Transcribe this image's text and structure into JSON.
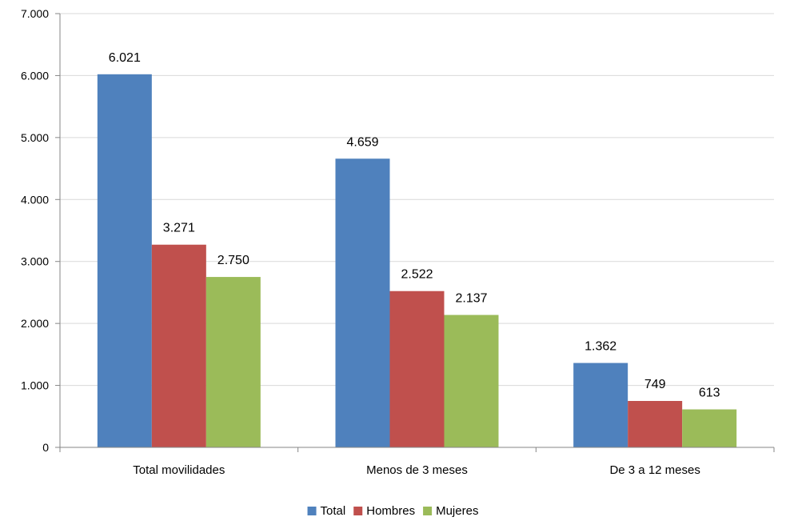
{
  "chart_data": {
    "type": "bar",
    "categories": [
      "Total movilidades",
      "Menos de 3 meses",
      "De 3 a 12 meses"
    ],
    "series": [
      {
        "name": "Total",
        "values": [
          6021,
          4659,
          1362
        ],
        "labels": [
          "6.021",
          "4.659",
          "1.362"
        ],
        "color": "#4F81BD"
      },
      {
        "name": "Hombres",
        "values": [
          3271,
          2522,
          749
        ],
        "labels": [
          "3.271",
          "2.522",
          "749"
        ],
        "color": "#C0504D"
      },
      {
        "name": "Mujeres",
        "values": [
          2750,
          2137,
          613
        ],
        "labels": [
          "2.750",
          "2.137",
          "613"
        ],
        "color": "#9BBB59"
      }
    ],
    "yticks": [
      {
        "value": 0,
        "label": "0"
      },
      {
        "value": 1000,
        "label": "1.000"
      },
      {
        "value": 2000,
        "label": "2.000"
      },
      {
        "value": 3000,
        "label": "3.000"
      },
      {
        "value": 4000,
        "label": "4.000"
      },
      {
        "value": 5000,
        "label": "5.000"
      },
      {
        "value": 6000,
        "label": "6.000"
      },
      {
        "value": 7000,
        "label": "7.000"
      }
    ],
    "ylim": [
      0,
      7000
    ],
    "grid": true,
    "legend_position": "bottom",
    "title": "",
    "xlabel": "",
    "ylabel": ""
  }
}
